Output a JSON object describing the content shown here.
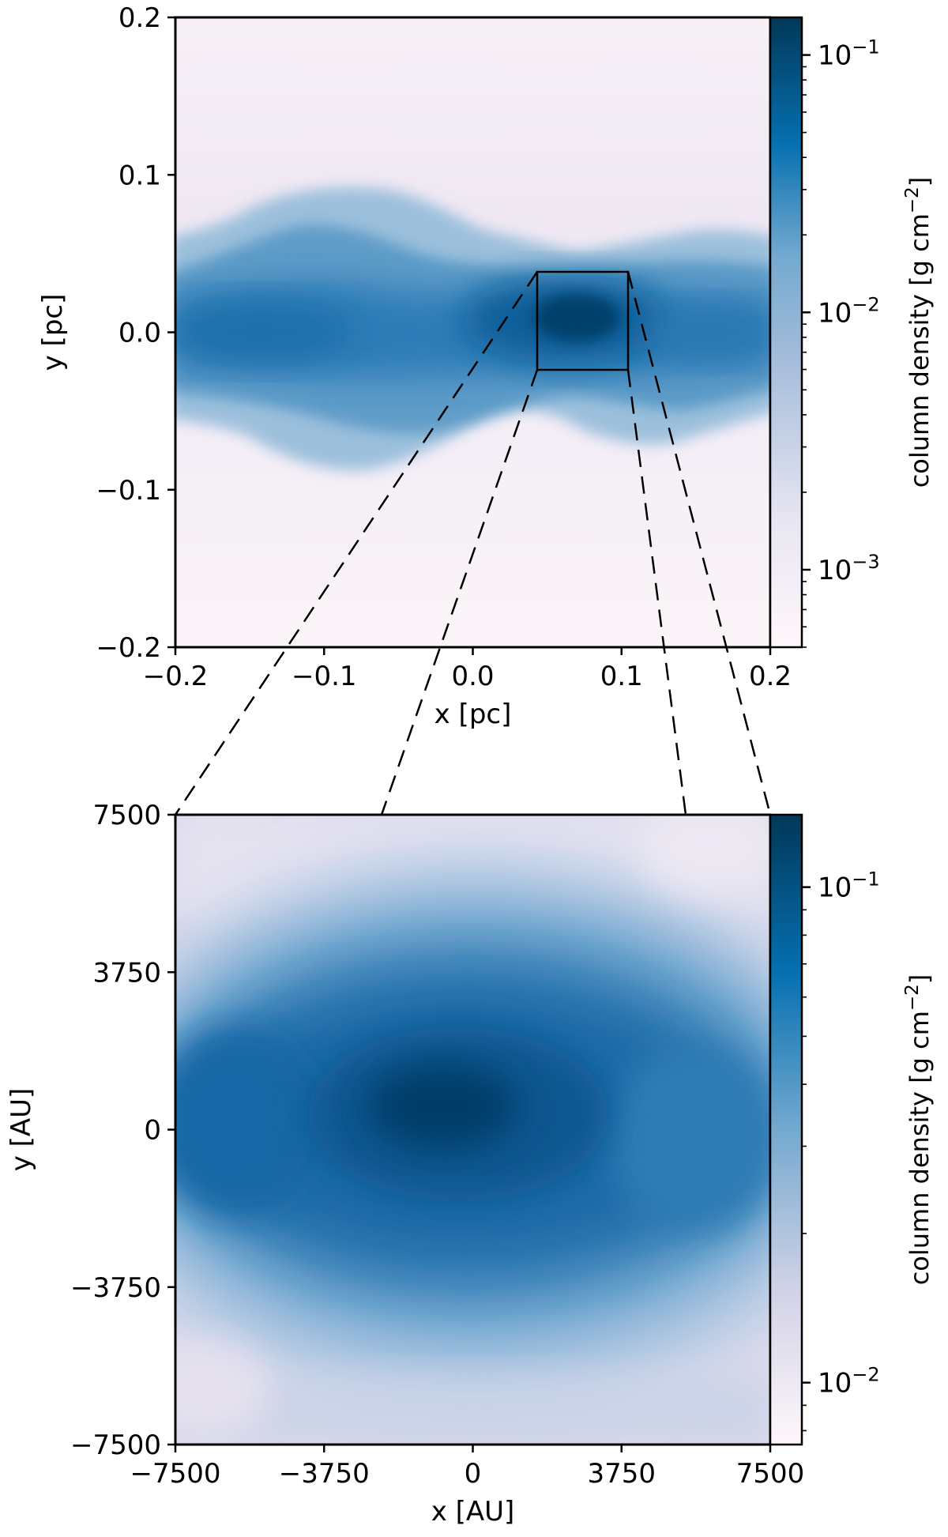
{
  "chart_data": [
    {
      "type": "heatmap",
      "panel": "top",
      "title": "",
      "xlabel": "x [pc]",
      "ylabel": "y [pc]",
      "xlim": [
        -0.2,
        0.2
      ],
      "ylim": [
        -0.2,
        0.2
      ],
      "x_ticks": [
        -0.2,
        -0.1,
        0.0,
        0.1,
        0.2
      ],
      "x_tick_labels": [
        "−0.2",
        "−0.1",
        "0.0",
        "0.1",
        "0.2"
      ],
      "y_ticks": [
        0.2,
        0.1,
        0.0,
        -0.1,
        -0.2
      ],
      "y_tick_labels": [
        "0.2",
        "0.1",
        "0.0",
        "−0.1",
        "−0.2"
      ],
      "colorbar": {
        "label": "column density [g cm",
        "label_sup": "−2",
        "label_close": "]",
        "scale": "log",
        "range": [
          0.0005,
          0.14
        ],
        "ticks": [
          0.1,
          0.01,
          0.001
        ],
        "tick_base": [
          "10",
          "10",
          "10"
        ],
        "tick_exp": [
          "−1",
          "−2",
          "−3"
        ]
      },
      "zoom_box": {
        "x": [
          0.0425,
          0.1045
        ],
        "y": [
          -0.025,
          0.0367
        ]
      },
      "colormap": [
        "#fff7fb",
        "#d0d1e6",
        "#74a9cf",
        "#0570b0",
        "#023858"
      ]
    },
    {
      "type": "heatmap",
      "panel": "bottom",
      "title": "",
      "xlabel": "x [AU]",
      "ylabel": "y [AU]",
      "xlim": [
        -7500,
        7500
      ],
      "ylim": [
        -7500,
        7500
      ],
      "x_ticks": [
        -7500,
        -3750,
        0,
        3750,
        7500
      ],
      "x_tick_labels": [
        "−7500",
        "−3750",
        "0",
        "3750",
        "7500"
      ],
      "y_ticks": [
        7500,
        3750,
        0,
        -3750,
        -7500
      ],
      "y_tick_labels": [
        "7500",
        "3750",
        "0",
        "−3750",
        "−7500"
      ],
      "colorbar": {
        "label": "column density [g cm",
        "label_sup": "−2",
        "label_close": "]",
        "scale": "log",
        "range": [
          0.0075,
          0.14
        ],
        "ticks": [
          0.1,
          0.01
        ],
        "tick_base": [
          "10",
          "10"
        ],
        "tick_exp": [
          "−1",
          "−2"
        ]
      },
      "colormap": [
        "#fff7fb",
        "#d0d1e6",
        "#74a9cf",
        "#0570b0",
        "#023858"
      ]
    }
  ]
}
